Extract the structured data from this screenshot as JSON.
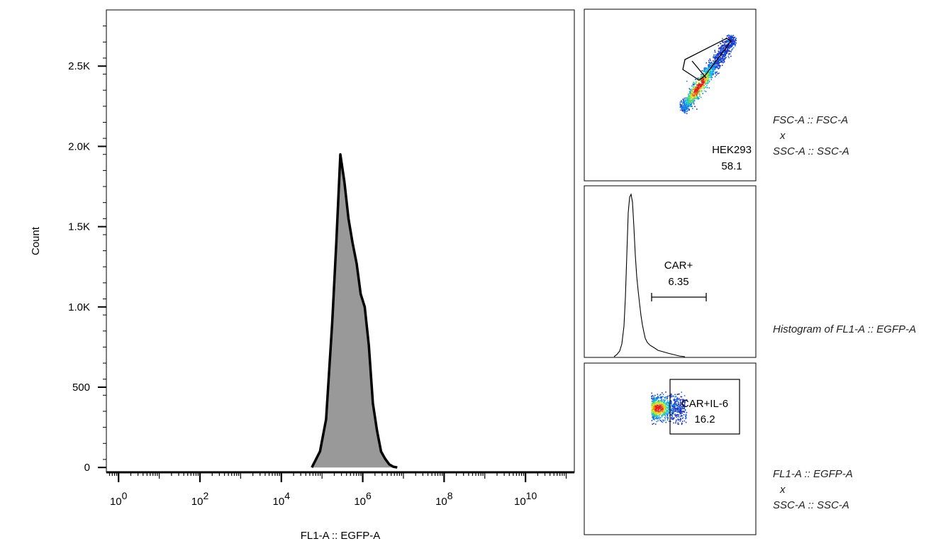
{
  "chart_data": [
    {
      "type": "area",
      "plot": "main-histogram",
      "xlabel": "FL1-A :: EGFP-A",
      "ylabel": "Count",
      "x_scale": "log10",
      "xlim_exponent": [
        -0.3,
        11.2
      ],
      "x_tick_labels": [
        {
          "base": "10",
          "exp": "0"
        },
        {
          "base": "10",
          "exp": "2"
        },
        {
          "base": "10",
          "exp": "4"
        },
        {
          "base": "10",
          "exp": "6"
        },
        {
          "base": "10",
          "exp": "8"
        },
        {
          "base": "10",
          "exp": "10"
        }
      ],
      "x_tick_values_exponent": [
        0,
        2,
        4,
        6,
        8,
        10
      ],
      "ylim": [
        -30,
        2850
      ],
      "y_ticks": [
        0,
        500,
        1000,
        1500,
        2000,
        2500
      ],
      "y_tick_labels": [
        "0",
        "500",
        "1.0K",
        "1.5K",
        "2.0K",
        "2.5K"
      ],
      "fill_color": "#999999",
      "line_color": "#000000",
      "x_exponent": [
        4.75,
        4.95,
        5.1,
        5.25,
        5.35,
        5.45,
        5.55,
        5.65,
        5.75,
        5.85,
        5.95,
        6.05,
        6.15,
        6.25,
        6.35,
        6.45,
        6.55,
        6.65,
        6.75,
        6.85
      ],
      "counts": [
        0,
        100,
        300,
        900,
        1400,
        1950,
        1780,
        1550,
        1400,
        1270,
        1080,
        1000,
        760,
        400,
        230,
        100,
        55,
        20,
        5,
        0
      ]
    },
    {
      "type": "scatter",
      "plot": "thumbnail-fsc-ssc",
      "xlabel": "FSC-A :: FSC-A",
      "ylabel": "SSC-A :: SSC-A",
      "gate": {
        "name": "HEK293",
        "percent": "58.1"
      }
    },
    {
      "type": "line",
      "plot": "thumbnail-histogram",
      "xlabel": "FL1-A :: EGFP-A",
      "gate": {
        "name": "CAR+",
        "percent": "6.35"
      }
    },
    {
      "type": "scatter",
      "plot": "thumbnail-fl1-ssc",
      "xlabel": "FL1-A :: EGFP-A",
      "ylabel": "SSC-A :: SSC-A",
      "gate": {
        "name": "CAR+IL-6",
        "percent": "16.2"
      }
    }
  ],
  "descriptions": {
    "fsc_ssc": {
      "line1": "FSC-A :: FSC-A",
      "line2": "x",
      "line3": "SSC-A :: SSC-A"
    },
    "histogram": {
      "line1": "Histogram of FL1-A :: EGFP-A"
    },
    "fl1_ssc": {
      "line1": "FL1-A :: EGFP-A",
      "line2": "x",
      "line3": "SSC-A :: SSC-A"
    }
  },
  "density_colors": [
    "#1e32c8",
    "#1478e6",
    "#14b4e6",
    "#32d296",
    "#9be632",
    "#f0dc1e",
    "#f08214",
    "#dc1e1e"
  ]
}
